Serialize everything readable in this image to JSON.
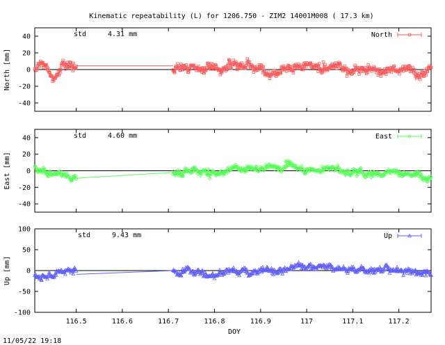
{
  "title": "Kinematic repeatability (L) for 1206.750 - ZIM2 14001M008  ( 17.3 km)",
  "footer_timestamp": "11/05/22 19:18",
  "chart_data": [
    {
      "type": "scatter",
      "series_name": "North",
      "ylabel": "North [mm]",
      "std_label": "std",
      "std_value": "4.31 mm",
      "color": "#ff5a5a",
      "marker": "square",
      "ylim": [
        -50,
        50
      ],
      "yticks": [
        40,
        20,
        0,
        -20,
        -40
      ],
      "xlim": [
        116.41,
        117.27
      ],
      "gap": [
        116.5,
        116.71
      ],
      "gap_level": 4.5,
      "noise": 4.3,
      "segments": [
        {
          "x": [
            116.41,
            116.5
          ],
          "y": [
            0,
            0
          ]
        },
        {
          "x": [
            116.71,
            116.96,
            117.27
          ],
          "y": [
            2,
            1,
            0
          ]
        }
      ]
    },
    {
      "type": "scatter",
      "series_name": "East",
      "ylabel": "East [mm]",
      "std_label": "std",
      "std_value": "4.60 mm",
      "color": "#55ff55",
      "marker": "diamond",
      "ylim": [
        -50,
        50
      ],
      "yticks": [
        40,
        20,
        0,
        -20,
        -40
      ],
      "xlim": [
        116.41,
        117.27
      ],
      "gap": [
        116.5,
        116.71
      ],
      "gap_level": -9,
      "gap_level_end": -2,
      "noise": 3.5,
      "segments": [
        {
          "x": [
            116.41,
            116.44,
            116.47,
            116.5
          ],
          "y": [
            3,
            2,
            -5,
            -8
          ]
        },
        {
          "x": [
            116.71,
            116.8,
            116.9,
            116.96,
            117.05,
            117.1,
            117.2,
            117.27
          ],
          "y": [
            -2,
            0,
            3,
            6,
            3,
            0,
            -3,
            -5
          ]
        }
      ]
    },
    {
      "type": "scatter",
      "series_name": "Up",
      "ylabel": "Up [mm]",
      "std_label": "std",
      "std_value": "9.43 mm",
      "color": "#6060ff",
      "marker": "triangle",
      "ylim": [
        -100,
        100
      ],
      "yticks": [
        100,
        50,
        0,
        -50,
        -100
      ],
      "xlim": [
        116.41,
        117.27
      ],
      "gap": [
        116.5,
        116.71
      ],
      "gap_level": -9,
      "gap_level_end": 0,
      "noise": 6.5,
      "segments": [
        {
          "x": [
            116.41,
            116.44,
            116.46,
            116.5
          ],
          "y": [
            -5,
            -12,
            -5,
            -8
          ]
        },
        {
          "x": [
            116.71,
            116.8,
            116.9,
            117.0,
            117.1,
            117.2,
            117.27
          ],
          "y": [
            -5,
            -6,
            2,
            8,
            8,
            -2,
            -12
          ]
        }
      ]
    }
  ],
  "xaxis": {
    "label": "DOY",
    "ticks": [
      {
        "value": 116.5,
        "label": "116.5"
      },
      {
        "value": 116.6,
        "label": "116.6"
      },
      {
        "value": 116.7,
        "label": "116.7"
      },
      {
        "value": 116.8,
        "label": "116.8"
      },
      {
        "value": 116.9,
        "label": "116.9"
      },
      {
        "value": 117.0,
        "label": "117"
      },
      {
        "value": 117.1,
        "label": "117.1"
      },
      {
        "value": 117.2,
        "label": "117.2"
      }
    ]
  }
}
